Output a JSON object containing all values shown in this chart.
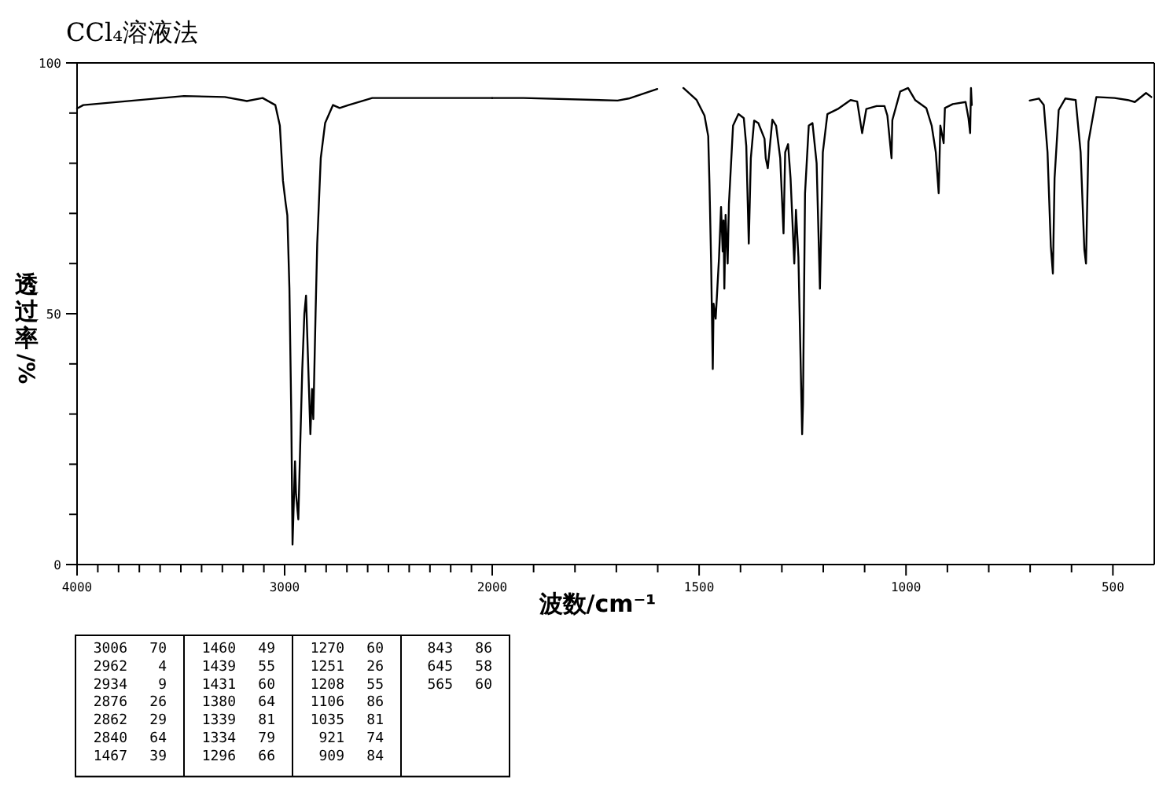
{
  "chart_data": [
    {
      "type": "line",
      "title": "CCl₄溶液法",
      "ylabel": "透过率/%",
      "xlim": [
        4000,
        2000
      ],
      "ylim": [
        0,
        100
      ],
      "xticks": [
        4000,
        {
          "value": 3900,
          "label": null
        },
        {
          "value": 3800,
          "label": null
        },
        {
          "value": 3700,
          "label": null
        },
        {
          "value": 3600,
          "label": null
        },
        {
          "value": 3500,
          "label": null
        },
        {
          "value": 3400,
          "label": null
        },
        {
          "value": 3300,
          "label": null
        },
        {
          "value": 3200,
          "label": null
        },
        {
          "value": 3100,
          "label": null
        },
        3000,
        {
          "value": 2900,
          "label": null
        },
        {
          "value": 2800,
          "label": null
        },
        {
          "value": 2700,
          "label": null
        },
        {
          "value": 2600,
          "label": null
        },
        {
          "value": 2500,
          "label": null
        },
        {
          "value": 2400,
          "label": null
        },
        {
          "value": 2300,
          "label": null
        },
        {
          "value": 2200,
          "label": null
        },
        {
          "value": 2100,
          "label": null
        },
        2000
      ],
      "yticks": [
        0,
        {
          "value": 10,
          "label": null
        },
        {
          "value": 20,
          "label": null
        },
        {
          "value": 30,
          "label": null
        },
        {
          "value": 40,
          "label": null
        },
        50,
        {
          "value": 60,
          "label": null
        },
        {
          "value": 70,
          "label": null
        },
        {
          "value": 80,
          "label": null
        },
        {
          "value": 90,
          "label": null
        },
        100
      ],
      "series": [
        {
          "color": "#000000",
          "x": [
            4000,
            3970,
            3485,
            3288,
            3182,
            3106,
            3045,
            3023,
            3008,
            2995,
            2987,
            2977,
            2968,
            2962,
            2950,
            2945,
            2934,
            2925,
            2915,
            2905,
            2897,
            2876,
            2868,
            2862,
            2851,
            2843,
            2826,
            2805,
            2767,
            2735,
            2692,
            2578,
            2000
          ],
          "values": [
            90.9,
            91.6,
            93.4,
            93.2,
            92.4,
            93,
            91.6,
            87.5,
            76.5,
            72,
            69.6,
            55,
            30,
            4,
            20.6,
            14,
            9,
            23.7,
            39,
            50,
            53.6,
            26,
            35,
            29,
            50,
            64,
            81,
            88,
            91.6,
            91,
            91.6,
            93,
            93
          ]
        }
      ],
      "annotations": [
        "3006 70",
        "2962 4",
        "2934 9",
        "2876 26",
        "2862 29",
        "2840 64",
        "1467 39",
        "1460 49",
        "1439 55",
        "1431 60",
        "1380 64",
        "1339 81",
        "1334 79",
        "1296 66",
        "1270 60",
        "1251 26",
        "1208 55",
        "1106 86",
        "1035 81",
        "921 74",
        "909 84",
        "843 86",
        "645 58",
        "565 60"
      ]
    },
    {
      "type": "line",
      "xlabel": "波数/cm⁻¹",
      "tick_labels": "x",
      "xlim": [
        2000,
        400
      ],
      "ylim": [
        0,
        100
      ],
      "xticks": [
        {
          "value": 1900,
          "label": null
        },
        {
          "value": 1800,
          "label": null
        },
        {
          "value": 1700,
          "label": null
        },
        {
          "value": 1600,
          "label": null
        },
        1500,
        {
          "value": 1400,
          "label": null
        },
        {
          "value": 1300,
          "label": null
        },
        {
          "value": 1200,
          "label": null
        },
        {
          "value": 1100,
          "label": null
        },
        1000,
        {
          "value": 900,
          "label": null
        },
        {
          "value": 800,
          "label": null
        },
        {
          "value": 700,
          "label": null
        },
        {
          "value": 600,
          "label": null
        },
        500
      ],
      "series": [
        {
          "color": "#000000",
          "x": [
            2000,
            1924,
            1697,
            1670,
            1601
          ],
          "values": [
            93,
            93,
            92.5,
            92.9,
            94.8
          ]
        },
        {
          "color": "#000000",
          "x": [
            1538,
            1506,
            1487,
            1478,
            1475,
            1471,
            1467,
            1465,
            1460,
            1452,
            1447,
            1443,
            1441,
            1439,
            1436,
            1431,
            1428,
            1418,
            1405,
            1392,
            1386,
            1380,
            1375,
            1367,
            1357,
            1342,
            1339,
            1334,
            1323,
            1314,
            1304,
            1296,
            1292,
            1285,
            1279,
            1270,
            1266,
            1260,
            1251,
            1249,
            1244,
            1235,
            1226,
            1216,
            1208,
            1201,
            1190,
            1165,
            1134,
            1118,
            1106,
            1096,
            1071,
            1052,
            1045,
            1035,
            1033,
            1014,
            995,
            978,
            951,
            938,
            928,
            921,
            917,
            909,
            906,
            887,
            856,
            849,
            845,
            843,
            841
          ],
          "values": [
            95,
            92.6,
            89.5,
            85.4,
            76,
            60.3,
            39,
            52,
            49,
            61,
            71.3,
            62.4,
            68.6,
            55,
            69.7,
            60,
            71.8,
            87.5,
            89.8,
            89,
            83.4,
            64,
            81,
            88.5,
            88,
            84.9,
            81,
            79,
            88.7,
            87.5,
            81,
            66,
            82.2,
            83.8,
            77,
            60,
            70.7,
            61.3,
            26,
            32,
            74,
            87.5,
            88,
            80,
            55,
            82.2,
            89.8,
            90.8,
            92.6,
            92.3,
            86,
            90.8,
            91.4,
            91.4,
            89.5,
            81,
            88.6,
            94.3,
            95,
            92.6,
            91,
            87.5,
            82.2,
            74,
            87.5,
            84,
            91,
            91.8,
            92.2,
            89,
            86,
            95,
            91.6
          ]
        },
        {
          "color": "#000000",
          "x": [
            701,
            679,
            667,
            658,
            650,
            645,
            641,
            631,
            615,
            590,
            578,
            569,
            565,
            559,
            540,
            496,
            464,
            447,
            420,
            407
          ],
          "values": [
            92.5,
            92.9,
            91.6,
            82.2,
            63.4,
            58,
            77,
            90.6,
            92.9,
            92.6,
            82.2,
            62.8,
            60,
            84.3,
            93.2,
            93,
            92.6,
            92.2,
            94,
            93.2
          ]
        }
      ]
    }
  ]
}
